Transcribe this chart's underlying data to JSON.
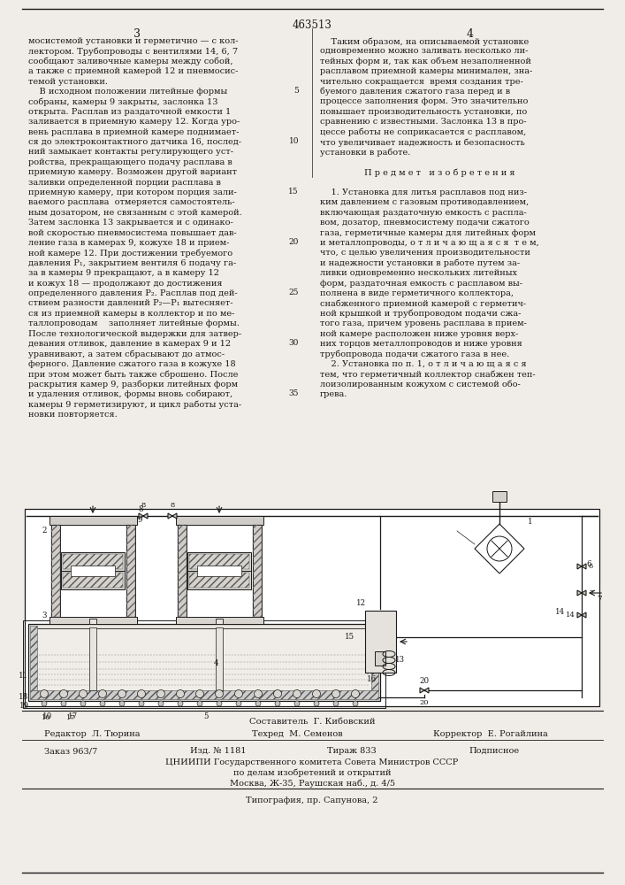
{
  "patent_number": "463513",
  "page_left": "3",
  "page_right": "4",
  "bg_color": "#f0ede8",
  "text_color": "#1a1a1a",
  "line_color": "#1a1a1a",
  "line_numbers_right": [
    5,
    10,
    15,
    20,
    25,
    30,
    35
  ],
  "left_col_lines": [
    "мосистемой установки и герметично — с кол-",
    "лектором. Трубопроводы с вентилями 14, 6, 7",
    "сообщают заливочные камеры между собой,",
    "а также с приемной камерой 12 и пневмосис-",
    "темой установки.",
    "    В исходном положении литейные формы",
    "собраны, камеры 9 закрыты, заслонка 13",
    "открыта. Расплав из раздаточной емкости 1",
    "заливается в приемную камеру 12. Когда уро-",
    "вень расплава в приемной камере поднимает-",
    "ся до электроконтактного датчика 16, послед-",
    "ний замыкает контакты регулирующего уст-",
    "ройства, прекращающего подачу расплава в",
    "приемную камеру. Возможен другой вариант",
    "заливки определенной порции расплава в",
    "приемную камеру, при котором порция зали-",
    "ваемого расплава  отмеряется самостоятель-",
    "ным дозатором, не связанным с этой камерой.",
    "Затем заслонка 13 закрывается и с одинако-",
    "вой скоростью пневмосистема повышает дав-",
    "ление газа в камерах 9, кожухе 18 и прием-",
    "ной камере 12. При достижении требуемого",
    "давления P₁, закрытием вентиля 6 подачу га-",
    "за в камеры 9 прекращают, а в камеру 12",
    "и кожух 18 — продолжают до достижения",
    "определенного давления P₂. Расплав под дей-",
    "ствием разности давлений P₂—P₁ вытесняет-",
    "ся из приемной камеры в коллектор и по ме-",
    "таллопроводам    заполняет литейные формы.",
    "После технологической выдержки для затвер-",
    "девания отливок, давление в камерах 9 и 12",
    "уравнивают, а затем сбрасывают до атмос-",
    "ферного. Давление сжатого газа в кожухе 18",
    "при этом может быть также сброшено. После",
    "раскрытия камер 9, разборки литейных форм",
    "и удаления отливок, формы вновь собирают,",
    "камеры 9 герметизируют, и цикл работы уста-",
    "новки повторяется."
  ],
  "right_col_lines": [
    "    Таким образом, на описываемой установке",
    "одновременно можно заливать несколько ли-",
    "тейных форм и, так как объем незаполненной",
    "расплавом приемной камеры минимален, зна-",
    "чительно сокращается  время создания тре-",
    "буемого давления сжатого газа перед и в",
    "процессе заполнения форм. Это значительно",
    "повышает производительность установки, по",
    "сравнению с известными. Заслонка 13 в про-",
    "цессе работы не соприкасается с расплавом,",
    "что увеличивает надежность и безопасность",
    "установки в работе.",
    "",
    "       П р е д м е т   и з о б р е т е н и я",
    "",
    "    1. Установка для литья расплавов под низ-",
    "ким давлением с газовым противодавлением,",
    "включающая раздаточную емкость с распла-",
    "вом, дозатор, пневмосистему подачи сжатого",
    "газа, герметичные камеры для литейных форм",
    "и металлопроводы, о т л и ч а ю щ а я с я  т е м,",
    "что, с целью увеличения производительности",
    "и надежности установки в работе путем за-",
    "ливки одновременно нескольких литейных",
    "форм, раздаточная емкость с расплавом вы-",
    "полнена в виде герметичного коллектора,",
    "снабженного приемной камерой с герметич-",
    "ной крышкой и трубопроводом подачи сжа-",
    "того газа, причем уровень расплава в прием-",
    "ной камере расположен ниже уровня верх-",
    "них торцов металлопроводов и ниже уровня",
    "трубопровода подачи сжатого газа в нее.",
    "    2. Установка по п. 1, о т л и ч а ю щ а я с я",
    "тем, что герметичный коллектор снабжен теп-",
    "лоизолированным кожухом с системой обо-",
    "грева."
  ],
  "composer": "Составитель  Г. Кибовский",
  "editor_label": "Редактор  Л. Тюрина",
  "tech_label": "Техред  М. Семенов",
  "corrector_label": "Корректор  Е. Рогайлина",
  "order": "Заказ 963/7",
  "pub_num": "Изд. № 1181",
  "circulation": "Тираж 833",
  "subscription": "Подписное",
  "org_line1": "ЦНИИПИ Государственного комитета Совета Министров СССР",
  "org_line2": "по делам изобретений и открытий",
  "org_line3": "Москва, Ж-35, Раушская наб., д. 4/5",
  "printer": "Типография, пр. Сапунова, 2"
}
